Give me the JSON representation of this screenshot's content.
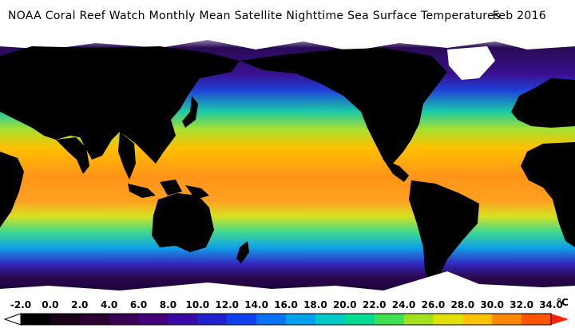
{
  "header": {
    "title": "NOAA Coral Reef Watch Monthly Mean Satellite Nighttime Sea Surface Temperatures",
    "date": "Feb 2016"
  },
  "legend": {
    "unit": "°C",
    "ticks": [
      "-2.0",
      "0.0",
      "2.0",
      "4.0",
      "6.0",
      "8.0",
      "10.0",
      "12.0",
      "14.0",
      "16.0",
      "18.0",
      "20.0",
      "22.0",
      "24.0",
      "26.0",
      "28.0",
      "30.0",
      "32.0",
      "34.0"
    ],
    "colors": [
      "#000000",
      "#1a0018",
      "#2a0030",
      "#3a0055",
      "#44007a",
      "#3a0aa6",
      "#2222cc",
      "#1040f0",
      "#0a72f5",
      "#00a2ee",
      "#00c8c8",
      "#00dc90",
      "#40e050",
      "#a0e020",
      "#e0e000",
      "#ffc000",
      "#ff8800",
      "#ff5500",
      "#ff2000"
    ],
    "min_arrow_color": "#ffffff",
    "max_arrow_color": "#ff2000"
  },
  "map": {
    "land_color": "#000000",
    "ice_color": "#ffffff",
    "ocean_bands": [
      {
        "lat_band": "arctic",
        "color": "#ffffff"
      },
      {
        "lat_band": "subpolar",
        "color": "#2a0850"
      },
      {
        "lat_band": "cold",
        "color": "#1e3fd8"
      },
      {
        "lat_band": "temperate",
        "color": "#18c8a8"
      },
      {
        "lat_band": "subtropical",
        "color": "#a8e030"
      },
      {
        "lat_band": "tropical",
        "color": "#ffb000"
      },
      {
        "lat_band": "warm-pool",
        "color": "#ff8a10"
      }
    ]
  }
}
